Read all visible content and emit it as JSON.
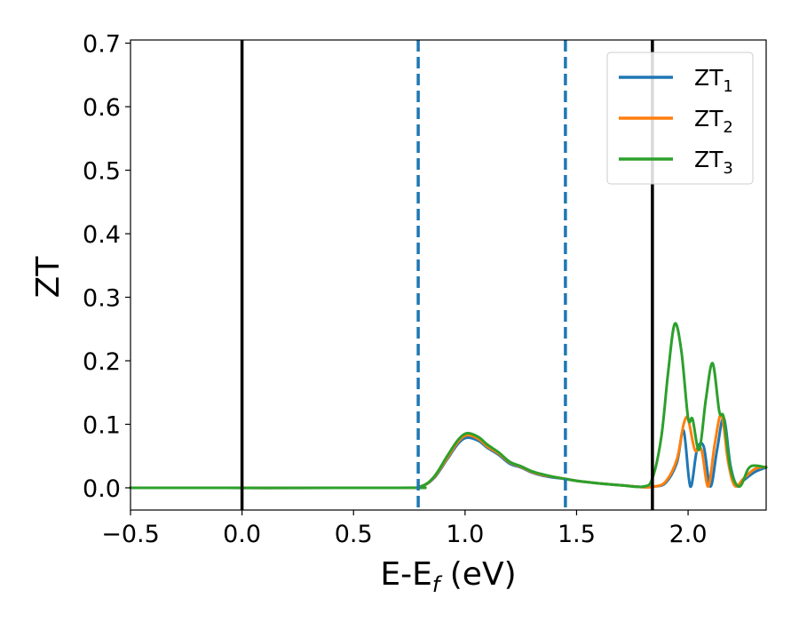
{
  "chart_data": {
    "type": "line",
    "title": "",
    "xlabel": {
      "main": "E-E",
      "sub": "f",
      "suffix": " (eV)"
    },
    "ylabel": "ZT",
    "xlim": [
      -0.5,
      2.35
    ],
    "ylim": [
      -0.035,
      0.705
    ],
    "x_ticks": [
      -0.5,
      0.0,
      0.5,
      1.0,
      1.5,
      2.0
    ],
    "x_tick_labels": [
      "−0.5",
      "0.0",
      "0.5",
      "1.0",
      "1.5",
      "2.0"
    ],
    "y_ticks": [
      0.0,
      0.1,
      0.2,
      0.3,
      0.4,
      0.5,
      0.6,
      0.7
    ],
    "y_tick_labels": [
      "0.0",
      "0.1",
      "0.2",
      "0.3",
      "0.4",
      "0.5",
      "0.6",
      "0.7"
    ],
    "grid": false,
    "legend_position": "top-right",
    "vertical_lines": [
      {
        "x": 0.0,
        "style": "solid",
        "color": "#000000"
      },
      {
        "x": 1.84,
        "style": "solid",
        "color": "#000000"
      },
      {
        "x": 0.79,
        "style": "dashed",
        "color": "#1f77b4"
      },
      {
        "x": 1.45,
        "style": "dashed",
        "color": "#1f77b4"
      }
    ],
    "series": [
      {
        "name": "ZT",
        "subscript": "1",
        "color": "#1f77b4",
        "x": [
          -0.5,
          0.7,
          0.8,
          0.86,
          0.92,
          0.97,
          1.01,
          1.06,
          1.1,
          1.15,
          1.2,
          1.25,
          1.3,
          1.35,
          1.4,
          1.45,
          1.5,
          1.6,
          1.7,
          1.8,
          1.85,
          1.9,
          1.95,
          1.98,
          2.01,
          2.04,
          2.07,
          2.1,
          2.13,
          2.16,
          2.19,
          2.22,
          2.25,
          2.3,
          2.35
        ],
        "y": [
          0.0,
          0.0,
          0.002,
          0.015,
          0.045,
          0.07,
          0.079,
          0.074,
          0.063,
          0.052,
          0.038,
          0.032,
          0.024,
          0.019,
          0.016,
          0.014,
          0.011,
          0.007,
          0.004,
          0.001,
          0.002,
          0.008,
          0.04,
          0.09,
          0.002,
          0.06,
          0.065,
          0.002,
          0.06,
          0.11,
          0.035,
          0.003,
          0.012,
          0.025,
          0.032
        ]
      },
      {
        "name": "ZT",
        "subscript": "2",
        "color": "#ff7f0e",
        "x": [
          -0.5,
          0.7,
          0.8,
          0.86,
          0.92,
          0.97,
          1.01,
          1.06,
          1.1,
          1.15,
          1.2,
          1.25,
          1.3,
          1.35,
          1.4,
          1.45,
          1.5,
          1.6,
          1.7,
          1.8,
          1.85,
          1.9,
          1.95,
          1.98,
          2.0,
          2.03,
          2.06,
          2.09,
          2.12,
          2.15,
          2.18,
          2.21,
          2.25,
          2.3,
          2.35
        ],
        "y": [
          0.0,
          0.0,
          0.002,
          0.016,
          0.047,
          0.073,
          0.083,
          0.077,
          0.065,
          0.054,
          0.04,
          0.033,
          0.025,
          0.02,
          0.017,
          0.014,
          0.011,
          0.007,
          0.004,
          0.001,
          0.002,
          0.01,
          0.045,
          0.1,
          0.108,
          0.06,
          0.06,
          0.002,
          0.07,
          0.115,
          0.04,
          0.003,
          0.015,
          0.03,
          0.033
        ]
      },
      {
        "name": "ZT",
        "subscript": "3",
        "color": "#2ca02c",
        "x": [
          -0.5,
          0.7,
          0.8,
          0.86,
          0.92,
          0.97,
          1.01,
          1.06,
          1.1,
          1.15,
          1.2,
          1.25,
          1.3,
          1.35,
          1.4,
          1.45,
          1.5,
          1.6,
          1.7,
          1.8,
          1.84,
          1.88,
          1.91,
          1.94,
          1.97,
          2.0,
          2.02,
          2.05,
          2.08,
          2.11,
          2.14,
          2.16,
          2.19,
          2.23,
          2.27,
          2.3,
          2.35
        ],
        "y": [
          0.0,
          0.0,
          0.002,
          0.017,
          0.05,
          0.076,
          0.086,
          0.08,
          0.068,
          0.056,
          0.041,
          0.034,
          0.026,
          0.021,
          0.017,
          0.014,
          0.011,
          0.007,
          0.004,
          0.002,
          0.015,
          0.08,
          0.18,
          0.258,
          0.215,
          0.11,
          0.108,
          0.06,
          0.14,
          0.196,
          0.12,
          0.11,
          0.03,
          0.002,
          0.03,
          0.035,
          0.032
        ]
      }
    ]
  }
}
